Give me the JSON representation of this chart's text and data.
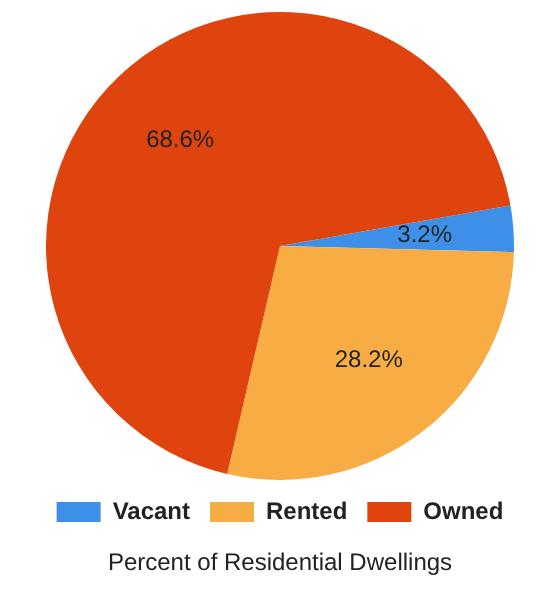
{
  "chart_data": {
    "type": "pie",
    "title": "Percent of Residential Dwellings",
    "categories": [
      "Vacant",
      "Rented",
      "Owned"
    ],
    "values": [
      3.2,
      28.2,
      68.6
    ],
    "value_labels": [
      "3.2%",
      "28.2%",
      "68.6%"
    ],
    "colors": [
      "#3d8fe8",
      "#f7ad44",
      "#e0440e"
    ],
    "legend": "bottom"
  }
}
